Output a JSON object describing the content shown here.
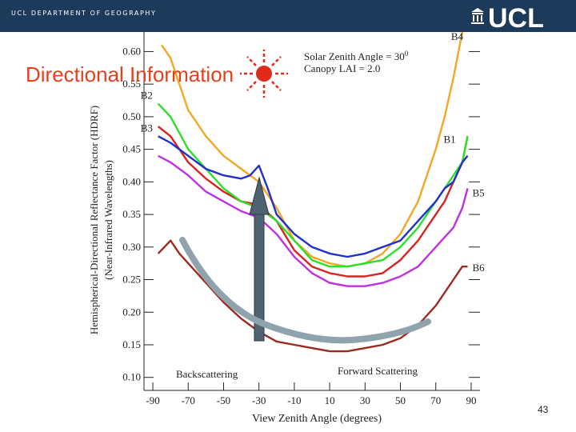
{
  "header": {
    "department": "UCL DEPARTMENT OF GEOGRAPHY",
    "logo_text": "UCL",
    "logo_color": "#ffffff"
  },
  "slide": {
    "title": "Directional Information",
    "title_color": "#e0421e",
    "page_number": "43"
  },
  "sun_icon": {
    "color": "#e02a1a"
  },
  "arrows": {
    "vertical_arrow_color": "#4f6470",
    "arc_arrow_color": "#8fa3ad"
  },
  "chart_data": {
    "type": "line",
    "xlabel": "View Zenith Angle (degrees)",
    "ylabel_line1": "Hemispherical-Directional Reflectance Factor (HDRF)",
    "ylabel_line2": "(Near-Infrared Wavelengths)",
    "xlim": [
      -95,
      95
    ],
    "ylim": [
      0.08,
      0.63
    ],
    "x_ticks": [
      -90,
      -70,
      -50,
      -30,
      -10,
      10,
      30,
      50,
      70,
      90
    ],
    "y_ticks": [
      0.1,
      0.15,
      0.2,
      0.25,
      0.3,
      0.35,
      0.4,
      0.45,
      0.5,
      0.55,
      0.6
    ],
    "y_tick_labels": [
      "0.10",
      "0.15",
      "0.20",
      "0.25",
      "0.30",
      "0.35",
      "0.40",
      "0.45",
      "0.50",
      "0.55",
      "0.60"
    ],
    "annotations": {
      "solar_zenith": "Solar Zenith Angle = 30",
      "degree_mark": "0",
      "canopy_lai": "Canopy LAI = 2.0",
      "backscattering": "Backscattering",
      "forward_scattering": "Forward Scattering"
    },
    "series": [
      {
        "name": "B4",
        "color": "#f5a623",
        "x": [
          -85,
          -80,
          -75,
          -70,
          -60,
          -50,
          -40,
          -30,
          -20,
          -10,
          0,
          10,
          20,
          30,
          40,
          50,
          60,
          70,
          75,
          80,
          85
        ],
        "y": [
          0.61,
          0.59,
          0.55,
          0.51,
          0.47,
          0.44,
          0.42,
          0.4,
          0.36,
          0.31,
          0.285,
          0.275,
          0.27,
          0.275,
          0.29,
          0.32,
          0.37,
          0.45,
          0.5,
          0.56,
          0.63
        ]
      },
      {
        "name": "B1",
        "color": "#d8241f",
        "x": [
          -87,
          -80,
          -70,
          -60,
          -50,
          -40,
          -30,
          -20,
          -10,
          0,
          10,
          20,
          30,
          40,
          50,
          60,
          70,
          75,
          80,
          85,
          88
        ],
        "y": [
          0.485,
          0.47,
          0.43,
          0.405,
          0.385,
          0.37,
          0.365,
          0.34,
          0.295,
          0.27,
          0.26,
          0.255,
          0.255,
          0.26,
          0.28,
          0.31,
          0.35,
          0.37,
          0.4,
          0.43,
          0.47
        ]
      },
      {
        "name": "B2",
        "color": "#2ae02a",
        "x": [
          -87,
          -80,
          -70,
          -60,
          -50,
          -40,
          -30,
          -20,
          -10,
          0,
          10,
          20,
          30,
          40,
          50,
          60,
          70,
          75,
          80,
          85,
          88
        ],
        "y": [
          0.52,
          0.5,
          0.45,
          0.42,
          0.39,
          0.37,
          0.36,
          0.34,
          0.31,
          0.28,
          0.27,
          0.27,
          0.275,
          0.28,
          0.3,
          0.33,
          0.37,
          0.39,
          0.41,
          0.43,
          0.47
        ]
      },
      {
        "name": "B3",
        "color": "#2030c8",
        "x": [
          -87,
          -80,
          -70,
          -60,
          -50,
          -40,
          -35,
          -30,
          -25,
          -20,
          -10,
          0,
          10,
          20,
          30,
          40,
          50,
          60,
          70,
          75,
          80,
          85,
          88
        ],
        "y": [
          0.47,
          0.46,
          0.44,
          0.42,
          0.41,
          0.405,
          0.41,
          0.425,
          0.39,
          0.35,
          0.32,
          0.3,
          0.29,
          0.285,
          0.29,
          0.3,
          0.31,
          0.34,
          0.37,
          0.39,
          0.4,
          0.43,
          0.44
        ]
      },
      {
        "name": "B5",
        "color": "#c030e0",
        "x": [
          -87,
          -80,
          -70,
          -60,
          -50,
          -40,
          -30,
          -20,
          -10,
          0,
          10,
          20,
          30,
          40,
          50,
          60,
          70,
          80,
          85,
          88
        ],
        "y": [
          0.44,
          0.43,
          0.41,
          0.385,
          0.37,
          0.355,
          0.345,
          0.32,
          0.285,
          0.26,
          0.245,
          0.24,
          0.24,
          0.245,
          0.255,
          0.27,
          0.3,
          0.33,
          0.36,
          0.39
        ]
      },
      {
        "name": "B6",
        "color": "#9b2b1f",
        "x": [
          -87,
          -80,
          -75,
          -70,
          -60,
          -50,
          -40,
          -30,
          -20,
          -10,
          0,
          10,
          20,
          30,
          40,
          50,
          60,
          70,
          75,
          80,
          85,
          88
        ],
        "y": [
          0.29,
          0.31,
          0.29,
          0.275,
          0.245,
          0.215,
          0.19,
          0.17,
          0.155,
          0.15,
          0.145,
          0.14,
          0.14,
          0.145,
          0.15,
          0.16,
          0.18,
          0.21,
          0.23,
          0.25,
          0.27,
          0.27
        ]
      }
    ]
  }
}
